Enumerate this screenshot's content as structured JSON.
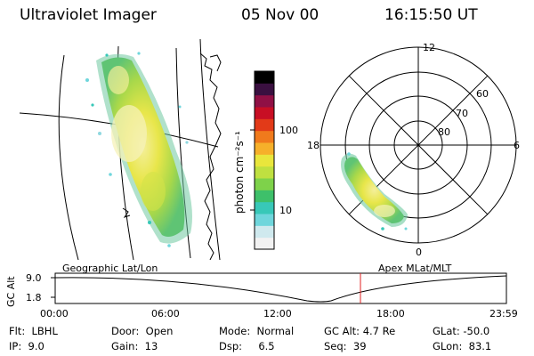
{
  "header": {
    "instrument": "Ultraviolet Imager",
    "date": "05 Nov 00",
    "time": "16:15:50 UT"
  },
  "colorbar": {
    "label": "photon cm⁻²s⁻¹",
    "tick_high": "100",
    "tick_low": "10",
    "colors": [
      "#f2f2f2",
      "#cfe9ee",
      "#6fd6dc",
      "#38c8b8",
      "#3ec06a",
      "#7ed24a",
      "#bfe040",
      "#e9e63c",
      "#f6b02a",
      "#f07a1c",
      "#e23a18",
      "#c80e24",
      "#901045",
      "#3a1040",
      "#000000"
    ]
  },
  "geo_map": {
    "label": "Geographic Lat/Lon"
  },
  "polar_plot": {
    "label": "Apex MLat/MLT",
    "mlt_labels": {
      "top": "12",
      "left": "18",
      "right": "6",
      "bottom": "0"
    },
    "lat_labels": [
      "60",
      "70",
      "80"
    ]
  },
  "timeline": {
    "axis_label": "GC Alt",
    "y_ticks": [
      "9.0",
      "1.8"
    ],
    "x_ticks": [
      "00:00",
      "06:00",
      "12:00",
      "18:00",
      "23:59"
    ]
  },
  "status": {
    "flt": {
      "label": "Flt:",
      "value": "LBHL"
    },
    "ip": {
      "label": "IP:",
      "value": "9.0"
    },
    "door": {
      "label": "Door:",
      "value": "Open"
    },
    "gain": {
      "label": "Gain:",
      "value": "13"
    },
    "mode": {
      "label": "Mode:",
      "value": "Normal"
    },
    "dsp": {
      "label": "Dsp:",
      "value": "6.5"
    },
    "gc_alt": {
      "label": "GC Alt:",
      "value": "4.7 Re"
    },
    "seq": {
      "label": "Seq:",
      "value": "39"
    },
    "glat": {
      "label": "GLat:",
      "value": "-50.0"
    },
    "glon": {
      "label": "GLon:",
      "value": "83.1"
    }
  }
}
